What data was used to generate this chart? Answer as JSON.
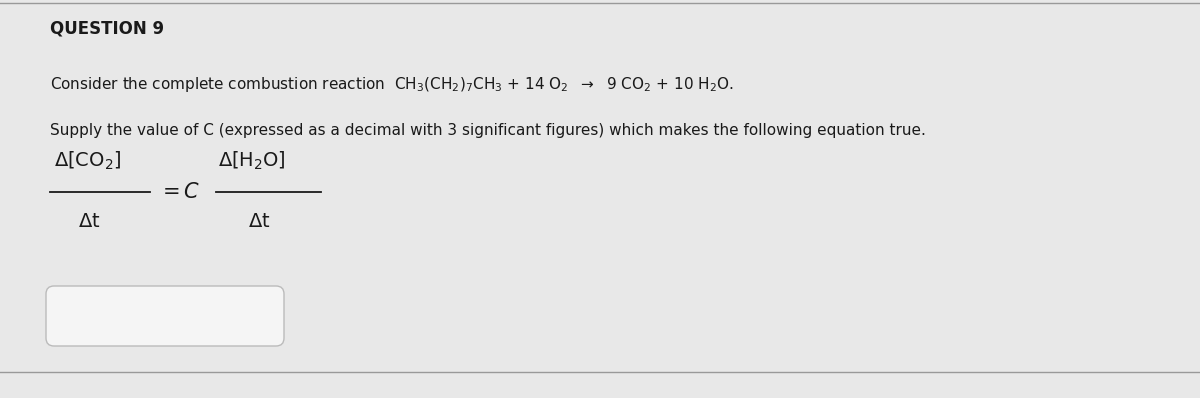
{
  "title": "QUESTION 9",
  "line1_prefix": "Consider the complete combustion reaction  ",
  "line1_chem": "CH$_3$(CH$_2$)$_7$CH$_3$ + 14 O$_2$  $\\rightarrow$  9 CO$_2$ + 10 H$_2$O.",
  "line2": "Supply the value of C (expressed as a decimal with 3 significant figures) which makes the following equation true.",
  "bg_color": "#e8e8e8",
  "box_color": "#f5f5f5",
  "box_edge_color": "#bbbbbb",
  "text_color": "#1a1a1a",
  "sep_line_color": "#999999",
  "title_fontsize": 12,
  "body_fontsize": 11,
  "math_fontsize": 14,
  "eq_fontsize": 14
}
